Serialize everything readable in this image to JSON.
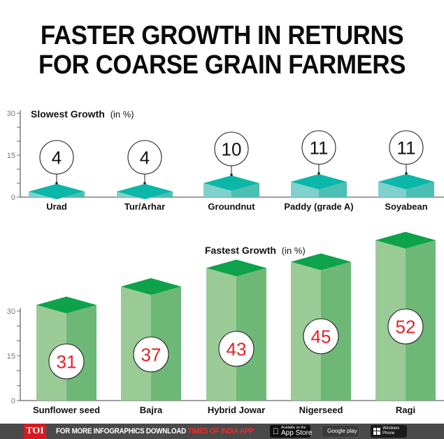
{
  "title": {
    "line1": "FASTER GROWTH IN RETURNS",
    "line2": "FOR COARSE GRAIN FARMERS"
  },
  "colors": {
    "teal_top": "#0ab7a8",
    "teal_left": "#80d0cc",
    "teal_right": "#4cbfb4",
    "green_top": "#0ea24b",
    "green_left": "#9acb97",
    "green_right": "#6db877",
    "value_red": "#e32228",
    "axis": "#666666",
    "footer_bg": "#4a4a4a",
    "toi_red": "#d71920"
  },
  "chart_data": [
    {
      "type": "bar",
      "title": "Slowest Growth",
      "title_unit": "(in %)",
      "categories": [
        "Urad",
        "Tur/Arhar",
        "Groundnut",
        "Paddy (grade A)",
        "Soyabean"
      ],
      "values": [
        4,
        4,
        10,
        11,
        11
      ],
      "value_labels": [
        "4",
        "4",
        "10",
        "11",
        "11"
      ],
      "xlabel": "",
      "ylabel": "",
      "ylim": [
        0,
        30
      ],
      "yticks": [
        0,
        15,
        30
      ],
      "ytick_labels": [
        "0",
        "15",
        "30"
      ],
      "minor_ticks_step": 5,
      "style": "3d-isometric-bars",
      "legend": "none",
      "grid": false
    },
    {
      "type": "bar",
      "title": "Fastest Growth",
      "title_unit": "(in %)",
      "categories": [
        "Sunflower seed",
        "Bajra",
        "Hybrid Jowar",
        "Nigerseed",
        "Ragi"
      ],
      "values": [
        31,
        37,
        43,
        45,
        52
      ],
      "value_labels": [
        "31",
        "37",
        "43",
        "45",
        "52"
      ],
      "xlabel": "",
      "ylabel": "",
      "ylim": [
        0,
        30
      ],
      "yticks": [
        0,
        15,
        30
      ],
      "ytick_labels": [
        "0",
        "15",
        "30"
      ],
      "minor_ticks_step": 5,
      "style": "3d-isometric-bars",
      "legend": "none",
      "grid": false
    }
  ],
  "footer": {
    "brand": "TOI",
    "text_white": "FOR MORE  INFOGRAPHICS DOWNLOAD ",
    "text_red": "TIMES OF INDIA  APP",
    "app_store_small": "Available on the",
    "app_store_big": "App Store",
    "google_play": "Google play",
    "windows_line1": "Windows",
    "windows_line2": "Phone"
  }
}
